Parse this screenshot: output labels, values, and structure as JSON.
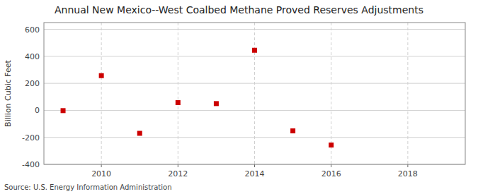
{
  "chart_data": {
    "type": "scatter",
    "title": "Annual New Mexico--West Coalbed Methane Proved Reserves Adjustments",
    "y_label": "Billion Cubic Feet",
    "annotations": [
      "Source: U.S. Energy Information Administration"
    ],
    "x": [
      2009,
      2010,
      2011,
      2012,
      2013,
      2014,
      2015,
      2016
    ],
    "values": [
      -2,
      257,
      -170,
      57,
      50,
      445,
      -152,
      -257
    ],
    "xlim": [
      2008.5,
      2019.5
    ],
    "ylim": [
      -400,
      650
    ],
    "xticks": [
      2010,
      2012,
      2014,
      2016,
      2018
    ],
    "yticks": [
      -400,
      -200,
      0,
      200,
      400,
      600
    ],
    "color": "#cc0000",
    "marker": "square",
    "grid": true
  }
}
